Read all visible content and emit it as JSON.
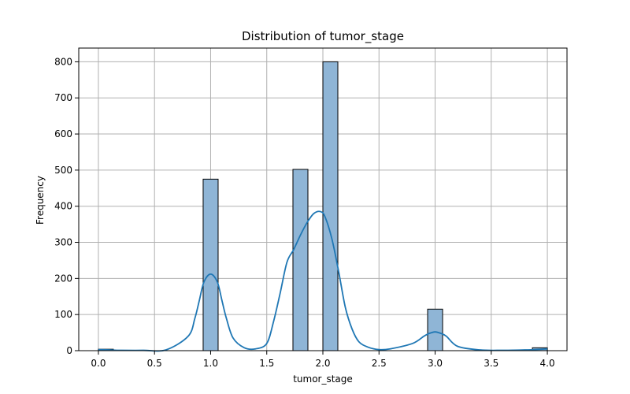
{
  "chart_data": {
    "type": "bar",
    "title": "Distribution of tumor_stage",
    "xlabel": "tumor_stage",
    "ylabel": "Frequency",
    "xlim": [
      -0.175,
      4.175
    ],
    "ylim": [
      0,
      838
    ],
    "xticks": [
      0.0,
      0.5,
      1.0,
      1.5,
      2.0,
      2.5,
      3.0,
      3.5,
      4.0
    ],
    "xtick_labels": [
      "0.0",
      "0.5",
      "1.0",
      "1.5",
      "2.0",
      "2.5",
      "3.0",
      "3.5",
      "4.0"
    ],
    "yticks": [
      0,
      100,
      200,
      300,
      400,
      500,
      600,
      700,
      800
    ],
    "ytick_labels": [
      "0",
      "100",
      "200",
      "300",
      "400",
      "500",
      "600",
      "700",
      "800"
    ],
    "grid": true,
    "bin_width": 0.1333,
    "bars": [
      {
        "x0": 0.0,
        "x1": 0.1333,
        "value": 4
      },
      {
        "x0": 0.9333,
        "x1": 1.0667,
        "value": 475
      },
      {
        "x0": 1.7333,
        "x1": 1.8667,
        "value": 502
      },
      {
        "x0": 2.0,
        "x1": 2.1333,
        "value": 800
      },
      {
        "x0": 2.9333,
        "x1": 3.0667,
        "value": 115
      },
      {
        "x0": 3.8667,
        "x1": 4.0,
        "value": 8
      }
    ],
    "kde": {
      "x": [
        0.0,
        0.1,
        0.2,
        0.4,
        0.6,
        0.8,
        0.86,
        0.9,
        0.94,
        1.0,
        1.06,
        1.1,
        1.14,
        1.2,
        1.3,
        1.4,
        1.5,
        1.56,
        1.62,
        1.68,
        1.74,
        1.8,
        1.86,
        1.92,
        1.98,
        2.02,
        2.08,
        2.14,
        2.2,
        2.26,
        2.32,
        2.4,
        2.5,
        2.6,
        2.8,
        2.9,
        2.95,
        3.0,
        3.05,
        3.1,
        3.2,
        3.4,
        3.6,
        3.8,
        3.9,
        4.0
      ],
      "y": [
        3,
        2,
        1,
        1,
        2,
        40,
        90,
        140,
        190,
        212,
        190,
        140,
        90,
        35,
        8,
        5,
        20,
        80,
        160,
        245,
        280,
        320,
        355,
        380,
        385,
        370,
        310,
        220,
        120,
        60,
        25,
        10,
        3,
        5,
        20,
        40,
        48,
        52,
        48,
        40,
        12,
        2,
        1,
        2,
        3,
        5
      ]
    },
    "colors": {
      "bar_fill": "#8fb5d6",
      "kde_line": "#1f77b4"
    }
  }
}
